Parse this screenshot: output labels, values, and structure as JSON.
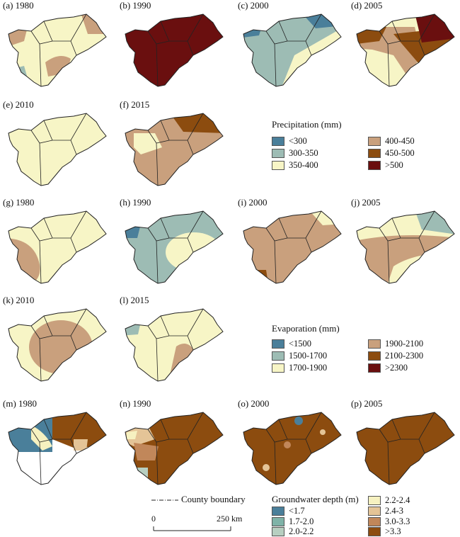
{
  "colors": {
    "p_lt300": "#4a7f9a",
    "p_300_350": "#9dbcb4",
    "p_350_400": "#f7f5c6",
    "p_400_450": "#c9a07d",
    "p_450_500": "#8c4c0f",
    "p_gt500": "#6a0f0f",
    "e_lt1500": "#4a7f9a",
    "e_1500_1700": "#9dbcb4",
    "e_1700_1900": "#f7f5c6",
    "e_1900_2100": "#c9a07d",
    "e_2100_2300": "#8c4c0f",
    "e_gt2300": "#6a0f0f",
    "g_lt17": "#4a7f9a",
    "g_17_20": "#7fb3a8",
    "g_20_22": "#b7cfc1",
    "g_22_24": "#f6f1c0",
    "g_24_3": "#e4c497",
    "g_30_33": "#c1875a",
    "g_gt33": "#8c4c0f"
  },
  "panels": [
    {
      "label": "(a) 1980"
    },
    {
      "label": "(b) 1990"
    },
    {
      "label": "(c) 2000"
    },
    {
      "label": "(d) 2005"
    },
    {
      "label": "(e) 2010"
    },
    {
      "label": "(f) 2015"
    },
    {
      "label": "(g) 1980"
    },
    {
      "label": "(h) 1990"
    },
    {
      "label": "(i) 2000"
    },
    {
      "label": "(j) 2005"
    },
    {
      "label": "(k) 2010"
    },
    {
      "label": "(l) 2015"
    },
    {
      "label": "(m) 1980"
    },
    {
      "label": "(n) 1990"
    },
    {
      "label": "(o) 2000"
    },
    {
      "label": "(p) 2005"
    }
  ],
  "legend_precip": {
    "title": "Precipitation (mm)",
    "items": [
      "<300",
      "300-350",
      "350-400",
      "400-450",
      "450-500",
      ">500"
    ]
  },
  "legend_evap": {
    "title": "Evaporation (mm)",
    "items": [
      "<1500",
      "1500-1700",
      "1700-1900",
      "1900-2100",
      "2100-2300",
      ">2300"
    ]
  },
  "legend_ground": {
    "title": "Groundwater depth (m)",
    "items": [
      "<1.7",
      "1.7-2.0",
      "2.0-2.2",
      "2.2-2.4",
      "2.4-3",
      "3.0-3.3",
      ">3.3"
    ]
  },
  "county_boundary": "County boundary",
  "scale": {
    "start": "0",
    "end": "250 km"
  }
}
